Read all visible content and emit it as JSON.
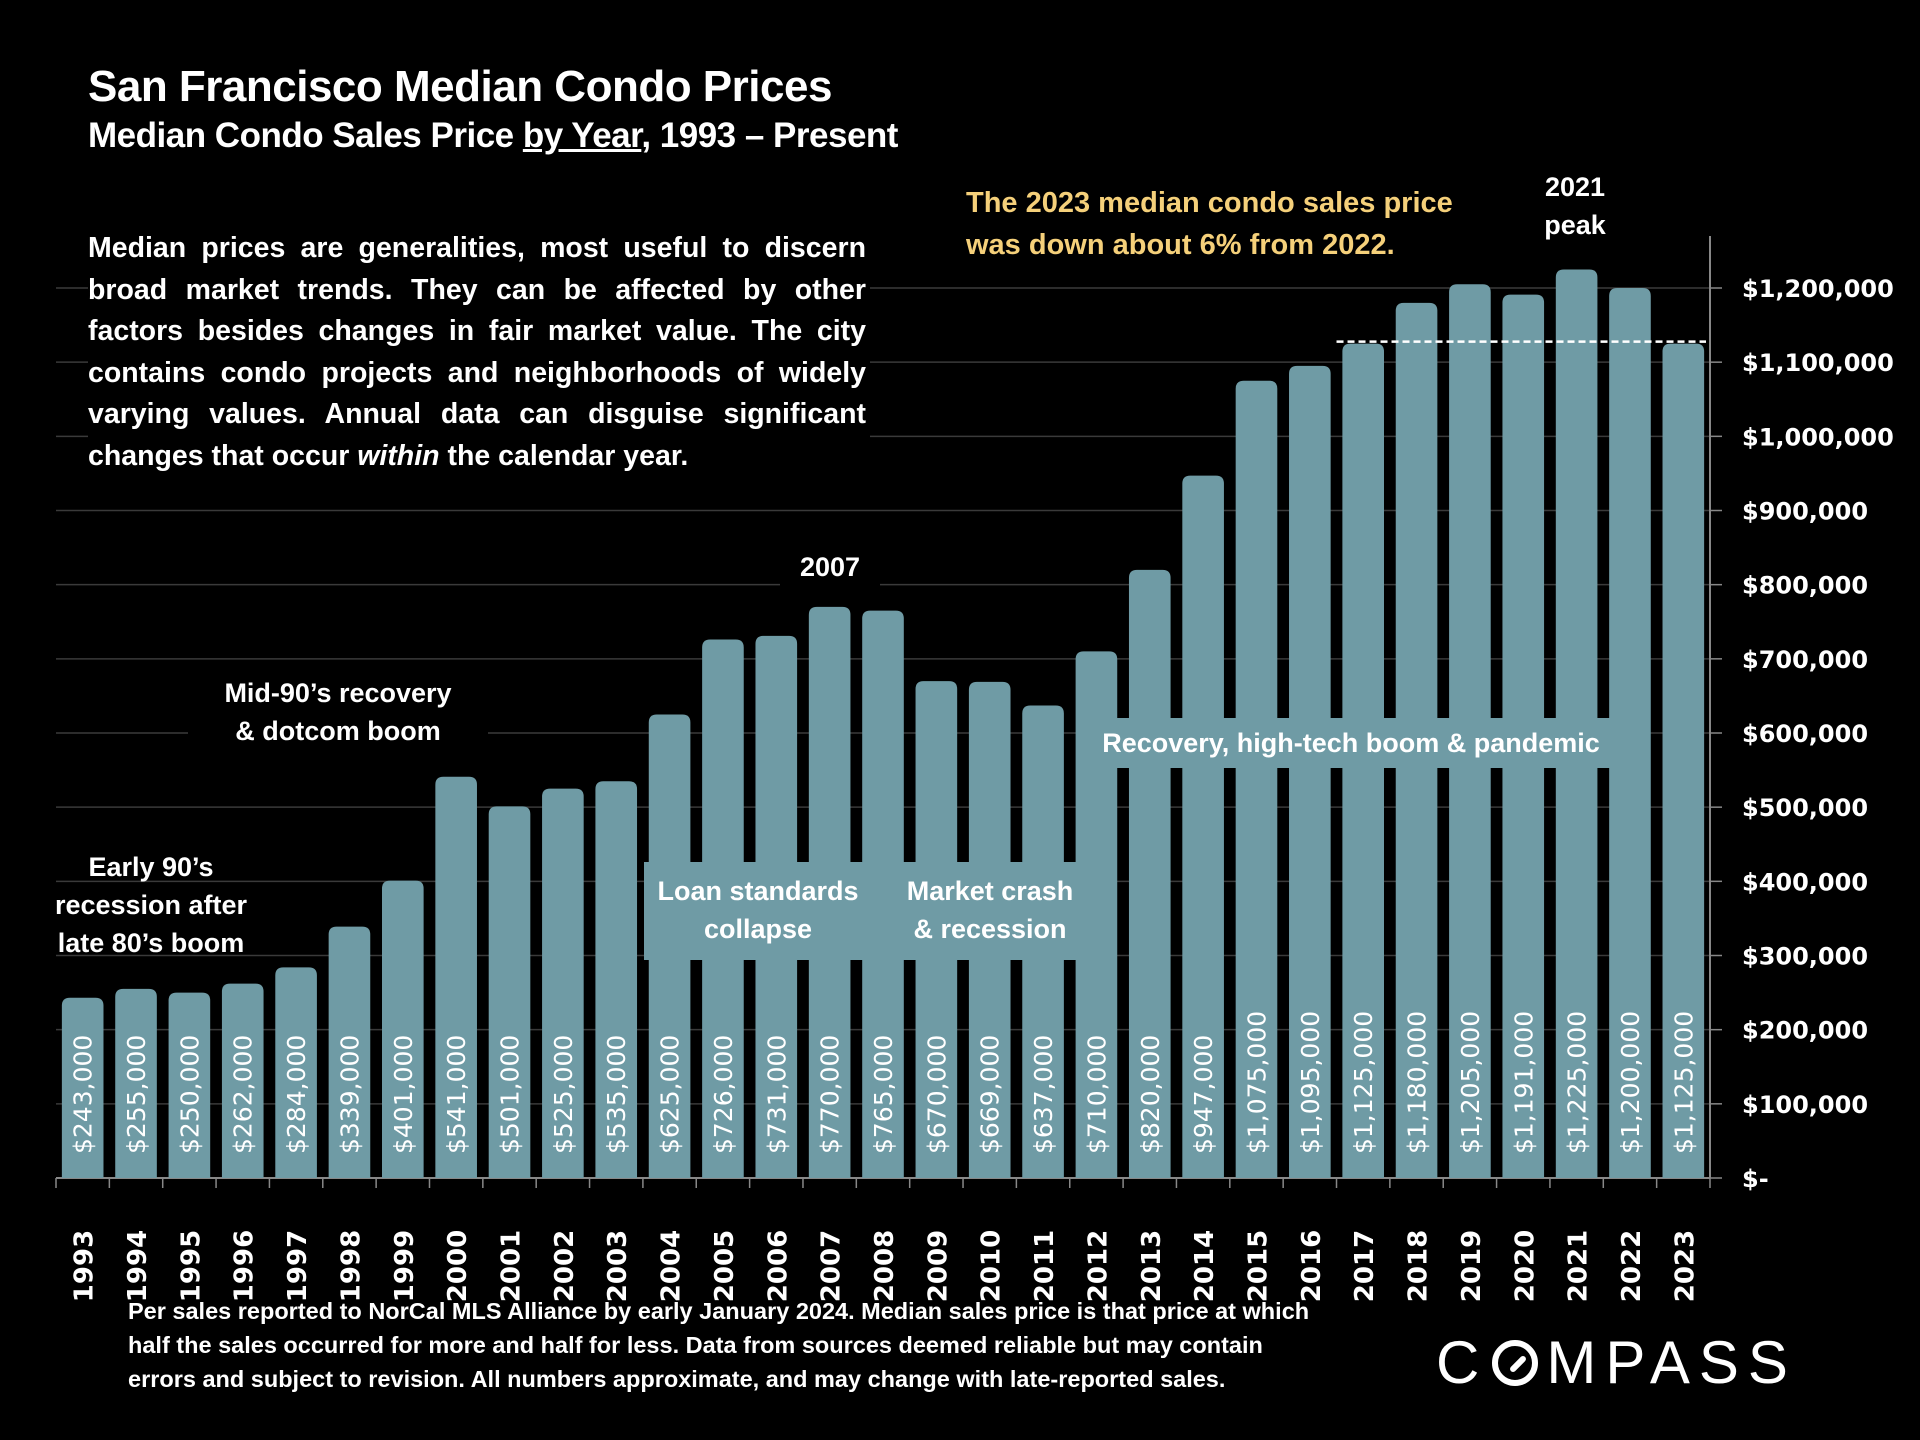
{
  "header": {
    "title": "San Francisco Median Condo Prices",
    "subtitle_pre": "Median Condo Sales Price ",
    "subtitle_link": "by Year",
    "subtitle_post": ", 1993 – Present"
  },
  "description": {
    "text_pre": "Median prices are generalities, most useful to discern broad market trends. They can be affected by other factors besides changes in fair market value. The city contains condo projects and neighborhoods of widely varying values. Annual data can disguise significant changes that occur ",
    "text_em": "within",
    "text_post": " the calendar year."
  },
  "callout": {
    "line1": "The 2023 median condo sales price",
    "line2": "was down about 6% from 2022.",
    "color": "#f5d07a"
  },
  "peak_label": {
    "line1": "2021",
    "line2": "peak"
  },
  "annotations": {
    "early_90s": [
      "Early 90’s",
      "recession after",
      "late 80’s boom"
    ],
    "mid_90s": [
      "Mid-90’s recovery",
      "& dotcom boom"
    ],
    "year_2007": "2007",
    "loan": [
      "Loan standards",
      "collapse"
    ],
    "crash": [
      "Market crash",
      "& recession"
    ],
    "recovery": "Recovery, high-tech boom & pandemic"
  },
  "footer": {
    "line1": "Per sales reported to NorCal MLS Alliance by early January 2024. Median sales price is that price at which",
    "line2": "half the sales occurred for more and half for less. Data from sources deemed reliable but may contain",
    "line3": "errors and subject to revision. All numbers approximate, and may change with late-reported sales."
  },
  "logo": {
    "pre": "C",
    "post": "MPASS"
  },
  "chart_data": {
    "type": "bar",
    "title": "San Francisco Median Condo Prices",
    "subtitle": "Median Condo Sales Price by Year, 1993 – Present",
    "xlabel": "",
    "ylabel": "",
    "bar_color": "#6f9ba5",
    "categories": [
      "1993",
      "1994",
      "1995",
      "1996",
      "1997",
      "1998",
      "1999",
      "2000",
      "2001",
      "2002",
      "2003",
      "2004",
      "2005",
      "2006",
      "2007",
      "2008",
      "2009",
      "2010",
      "2011",
      "2012",
      "2013",
      "2014",
      "2015",
      "2016",
      "2017",
      "2018",
      "2019",
      "2020",
      "2021",
      "2022",
      "2023"
    ],
    "values": [
      243000,
      255000,
      250000,
      262000,
      284000,
      339000,
      401000,
      541000,
      501000,
      525000,
      535000,
      625000,
      726000,
      731000,
      770000,
      765000,
      670000,
      669000,
      637000,
      710000,
      820000,
      947000,
      1075000,
      1095000,
      1125000,
      1180000,
      1205000,
      1191000,
      1225000,
      1200000,
      1125000
    ],
    "data_labels": [
      "$243,000",
      "$255,000",
      "$250,000",
      "$262,000",
      "$284,000",
      "$339,000",
      "$401,000",
      "$541,000",
      "$501,000",
      "$525,000",
      "$535,000",
      "$625,000",
      "$726,000",
      "$731,000",
      "$770,000",
      "$765,000",
      "$670,000",
      "$669,000",
      "$637,000",
      "$710,000",
      "$820,000",
      "$947,000",
      "$1,075,000",
      "$1,095,000",
      "$1,125,000",
      "$1,180,000",
      "$1,205,000",
      "$1,191,000",
      "$1,225,000",
      "$1,200,000",
      "$1,125,000"
    ],
    "ylim": [
      0,
      1250000
    ],
    "yticks": [
      0,
      100000,
      200000,
      300000,
      400000,
      500000,
      600000,
      700000,
      800000,
      900000,
      1000000,
      1100000,
      1200000
    ],
    "ytick_labels": [
      "$-",
      "$100,000",
      "$200,000",
      "$300,000",
      "$400,000",
      "$500,000",
      "$600,000",
      "$700,000",
      "$800,000",
      "$900,000",
      "$1,000,000",
      "$1,100,000",
      "$1,200,000"
    ],
    "y_axis_position": "right",
    "grid": true,
    "reference_line": {
      "value": 1125000,
      "style": "dashed",
      "from": "2017",
      "to": "2023"
    }
  }
}
